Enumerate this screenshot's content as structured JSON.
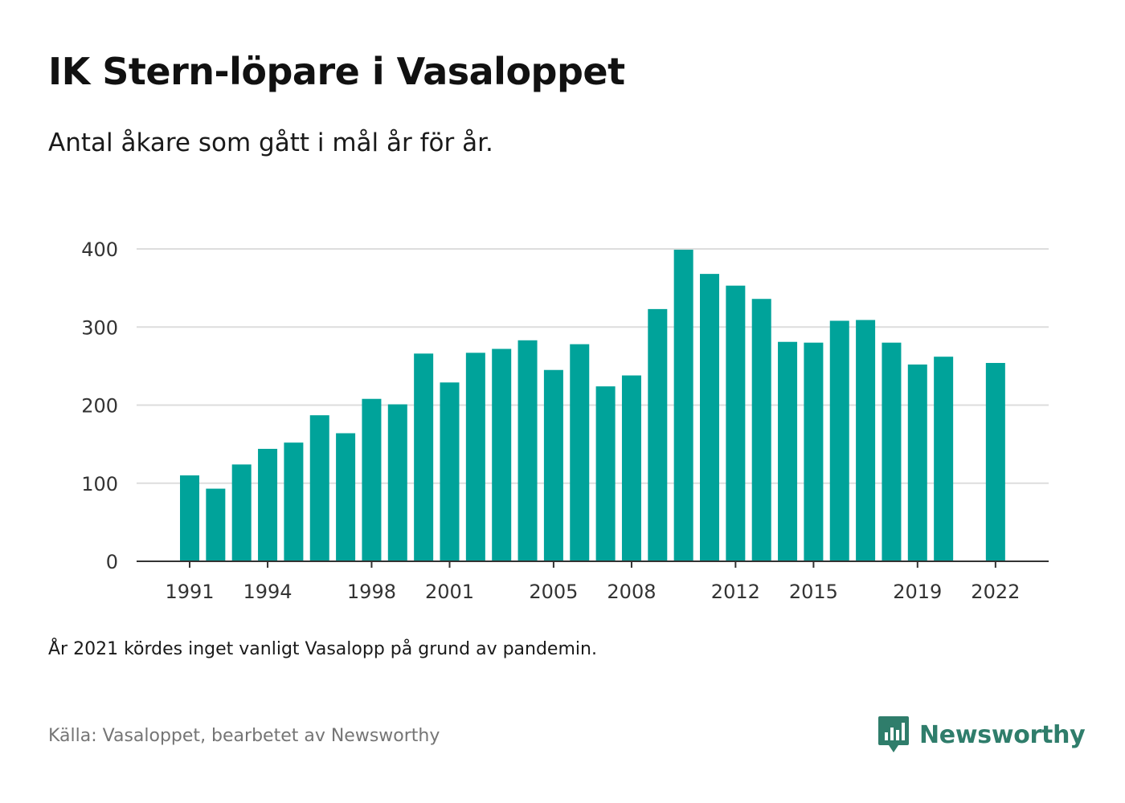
{
  "header": {
    "title": "IK Stern-löpare i Vasaloppet",
    "subtitle": "Antal åkare som gått i mål år för år."
  },
  "footer": {
    "note": "År 2021 kördes inget vanligt Vasalopp på grund av pandemin.",
    "source": "Källa: Vasaloppet, bearbetet av Newsworthy",
    "brand": "Newsworthy",
    "brand_icon": "newsworthy-logo-icon"
  },
  "colors": {
    "bar": "#00a39a",
    "grid": "#dddddd",
    "axis": "#333333",
    "brand": "#2f7d6b"
  },
  "chart_data": {
    "type": "bar",
    "title": "IK Stern-löpare i Vasaloppet",
    "subtitle": "Antal åkare som gått i mål år för år.",
    "xlabel": "",
    "ylabel": "",
    "ylim": [
      0,
      400
    ],
    "y_ticks": [
      "0",
      "100",
      "200",
      "300",
      "400"
    ],
    "x_tick_labels": [
      "1991",
      "1994",
      "1998",
      "2001",
      "2005",
      "2008",
      "2012",
      "2015",
      "2019",
      "2022"
    ],
    "grid": true,
    "legend": "none",
    "categories": [
      1991,
      1992,
      1993,
      1994,
      1995,
      1996,
      1997,
      1998,
      1999,
      2000,
      2001,
      2002,
      2003,
      2004,
      2005,
      2006,
      2007,
      2008,
      2009,
      2010,
      2011,
      2012,
      2013,
      2014,
      2015,
      2016,
      2017,
      2018,
      2019,
      2020,
      2021,
      2022
    ],
    "values": [
      110,
      93,
      124,
      144,
      152,
      187,
      164,
      208,
      201,
      266,
      229,
      267,
      272,
      283,
      245,
      278,
      224,
      238,
      323,
      399,
      368,
      353,
      336,
      281,
      280,
      308,
      309,
      280,
      252,
      262,
      null,
      254
    ]
  }
}
